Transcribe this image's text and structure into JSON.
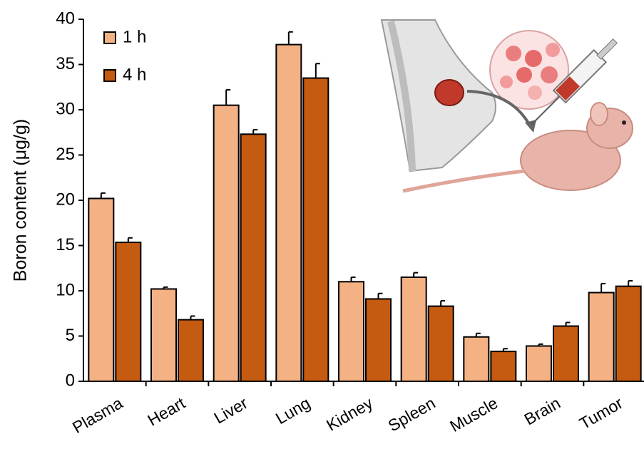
{
  "chart_data": {
    "type": "bar",
    "y_label": "Boron content (μg/g)",
    "categories": [
      "Plasma",
      "Heart",
      "Liver",
      "Lung",
      "Kidney",
      "Spleen",
      "Muscle",
      "Brain",
      "Tumor"
    ],
    "series": [
      {
        "name": "1 h",
        "color": "#f4b183",
        "values": [
          20.2,
          10.2,
          30.5,
          37.2,
          11.0,
          11.5,
          4.9,
          3.9,
          9.8
        ],
        "errors": [
          0.6,
          0.2,
          1.7,
          1.4,
          0.5,
          0.5,
          0.4,
          0.2,
          1.0
        ]
      },
      {
        "name": "4 h",
        "color": "#c55a11",
        "values": [
          15.35,
          6.8,
          27.3,
          33.5,
          9.1,
          8.3,
          3.3,
          6.1,
          10.5
        ],
        "errors": [
          0.5,
          0.4,
          0.5,
          1.6,
          0.6,
          0.6,
          0.3,
          0.4,
          0.6
        ]
      }
    ],
    "ylim": [
      0,
      40
    ],
    "yticks": [
      0,
      5,
      10,
      15,
      20,
      25,
      30,
      35,
      40
    ],
    "legend": "upper left"
  }
}
